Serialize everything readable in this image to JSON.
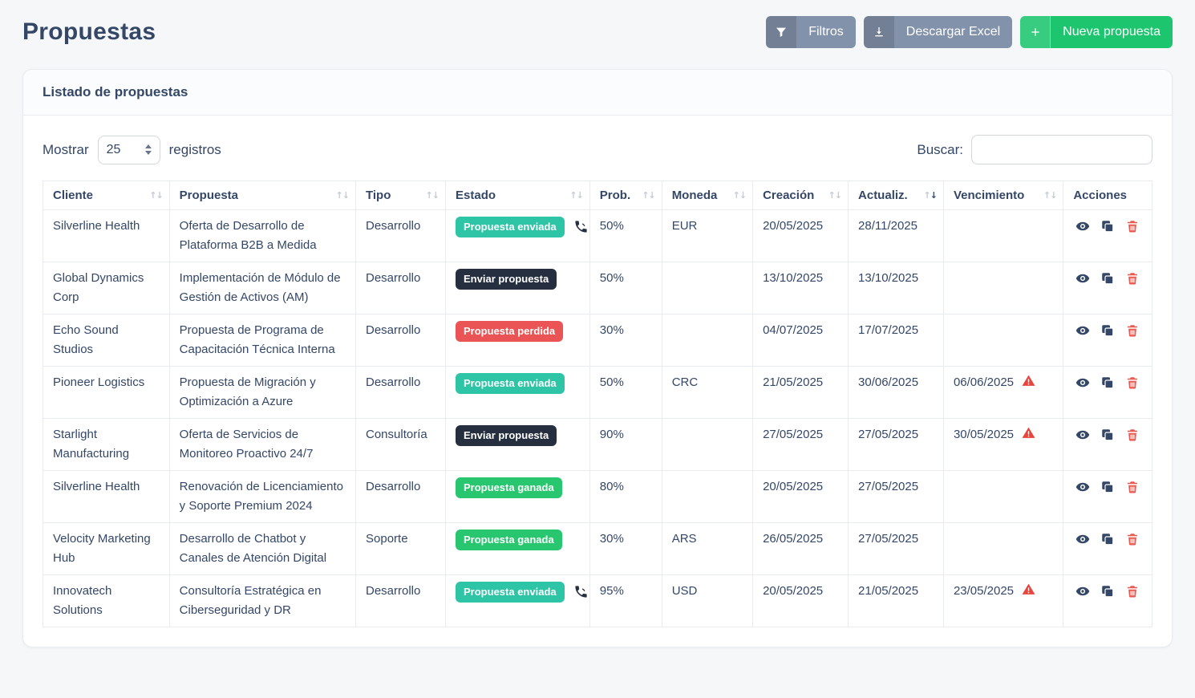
{
  "page": {
    "title": "Propuestas"
  },
  "toolbar": {
    "filters": "Filtros",
    "download": "Descargar Excel",
    "new": "Nueva propuesta"
  },
  "card": {
    "title": "Listado de propuestas",
    "length_label_before": "Mostrar",
    "length_value": "25",
    "length_label_after": "registros",
    "search_label": "Buscar:",
    "search_value": ""
  },
  "table": {
    "columns": [
      {
        "key": "cliente",
        "label": "Cliente",
        "sortable": true,
        "sort": null
      },
      {
        "key": "propuesta",
        "label": "Propuesta",
        "sortable": true,
        "sort": null
      },
      {
        "key": "tipo",
        "label": "Tipo",
        "sortable": true,
        "sort": null
      },
      {
        "key": "estado",
        "label": "Estado",
        "sortable": true,
        "sort": null
      },
      {
        "key": "prob",
        "label": "Prob.",
        "sortable": true,
        "sort": null
      },
      {
        "key": "moneda",
        "label": "Moneda",
        "sortable": true,
        "sort": null
      },
      {
        "key": "creacion",
        "label": "Creación",
        "sortable": true,
        "sort": null
      },
      {
        "key": "actualiz",
        "label": "Actualiz.",
        "sortable": true,
        "sort": "desc"
      },
      {
        "key": "vencimiento",
        "label": "Vencimiento",
        "sortable": true,
        "sort": null
      },
      {
        "key": "acciones",
        "label": "Acciones",
        "sortable": false,
        "sort": null
      }
    ],
    "rows": [
      {
        "cliente": "Silverline Health",
        "propuesta": "Oferta de Desarrollo de Plataforma B2B a Medida",
        "tipo": "Desarrollo",
        "estado": "Propuesta enviada",
        "estado_type": "enviada",
        "phone": true,
        "prob": "50%",
        "moneda": "EUR",
        "creacion": "20/05/2025",
        "actualiz": "28/11/2025",
        "vencimiento": "",
        "vencido": false
      },
      {
        "cliente": "Global Dynamics Corp",
        "propuesta": "Implementación de Módulo de Gestión de Activos (AM)",
        "tipo": "Desarrollo",
        "estado": "Enviar propuesta",
        "estado_type": "enviar",
        "phone": false,
        "prob": "50%",
        "moneda": "",
        "creacion": "13/10/2025",
        "actualiz": "13/10/2025",
        "vencimiento": "",
        "vencido": false
      },
      {
        "cliente": "Echo Sound Studios",
        "propuesta": "Propuesta de Programa de Capacitación Técnica Interna",
        "tipo": "Desarrollo",
        "estado": "Propuesta perdida",
        "estado_type": "perdida",
        "phone": false,
        "prob": "30%",
        "moneda": "",
        "creacion": "04/07/2025",
        "actualiz": "17/07/2025",
        "vencimiento": "",
        "vencido": false
      },
      {
        "cliente": "Pioneer Logistics",
        "propuesta": "Propuesta de Migración y Optimización a Azure",
        "tipo": "Desarrollo",
        "estado": "Propuesta enviada",
        "estado_type": "enviada",
        "phone": false,
        "prob": "50%",
        "moneda": "CRC",
        "creacion": "21/05/2025",
        "actualiz": "30/06/2025",
        "vencimiento": "06/06/2025",
        "vencido": true
      },
      {
        "cliente": "Starlight Manufacturing",
        "propuesta": "Oferta de Servicios de Monitoreo Proactivo 24/7",
        "tipo": "Consultoría",
        "estado": "Enviar propuesta",
        "estado_type": "enviar",
        "phone": false,
        "prob": "90%",
        "moneda": "",
        "creacion": "27/05/2025",
        "actualiz": "27/05/2025",
        "vencimiento": "30/05/2025",
        "vencido": true
      },
      {
        "cliente": "Silverline Health",
        "propuesta": "Renovación de Licenciamiento y Soporte Premium 2024",
        "tipo": "Desarrollo",
        "estado": "Propuesta ganada",
        "estado_type": "ganada",
        "phone": false,
        "prob": "80%",
        "moneda": "",
        "creacion": "20/05/2025",
        "actualiz": "27/05/2025",
        "vencimiento": "",
        "vencido": false
      },
      {
        "cliente": "Velocity Marketing Hub",
        "propuesta": "Desarrollo de Chatbot y Canales de Atención Digital",
        "tipo": "Soporte",
        "estado": "Propuesta ganada",
        "estado_type": "ganada",
        "phone": false,
        "prob": "30%",
        "moneda": "ARS",
        "creacion": "26/05/2025",
        "actualiz": "27/05/2025",
        "vencimiento": "",
        "vencido": false
      },
      {
        "cliente": "Innovatech Solutions",
        "propuesta": "Consultoría Estratégica en Ciberseguridad y DR",
        "tipo": "Desarrollo",
        "estado": "Propuesta enviada",
        "estado_type": "enviada",
        "phone": true,
        "prob": "95%",
        "moneda": "USD",
        "creacion": "20/05/2025",
        "actualiz": "21/05/2025",
        "vencimiento": "23/05/2025",
        "vencido": true
      }
    ]
  },
  "icons": {
    "filters": "funnel-icon",
    "download": "download-icon",
    "new": "plus-icon",
    "call": "phone-icon",
    "overdue": "warning-triangle-icon",
    "view": "eye-icon",
    "duplicate": "copy-icon",
    "delete": "trash-icon"
  },
  "colors": {
    "accent_green": "#1cc56e",
    "button_gray": "#8392ab",
    "badge_enviada": "#2ec4a6",
    "badge_enviar": "#252f40",
    "badge_perdida": "#ea5455",
    "badge_ganada": "#28c76f",
    "danger": "#e8453c",
    "text": "#344767"
  }
}
